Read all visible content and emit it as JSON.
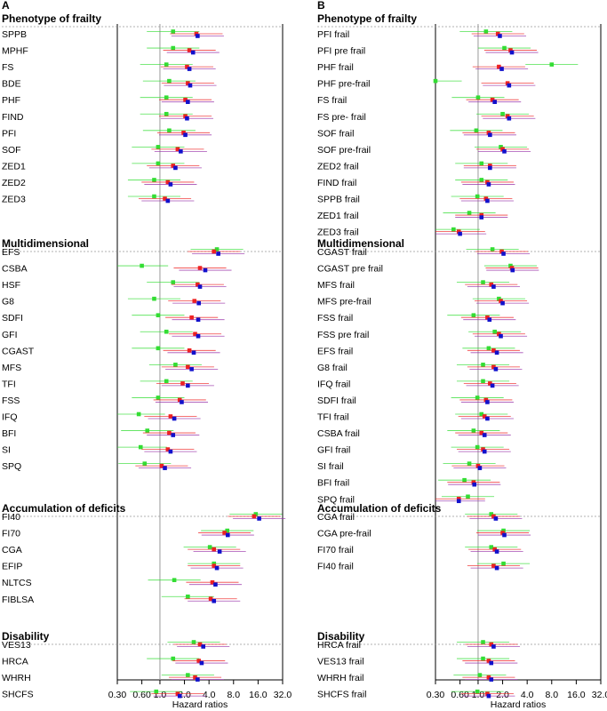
{
  "colors": {
    "green": "#33dd33",
    "red": "#ee2222",
    "blue": "#1111cc",
    "purple": "#9933aa",
    "ref": "#999999",
    "sep": "#999999"
  },
  "chart_data": [
    {
      "type": "forest",
      "panel": "A",
      "xlabel": "Hazard ratios",
      "xscale": "log",
      "xlim": [
        0.3,
        32
      ],
      "xticks": [
        0.3,
        0.6,
        1,
        2,
        4,
        8,
        16,
        32
      ],
      "xtick_labels": [
        "0.30",
        "0.60",
        "1.0",
        "2.0",
        "4.0",
        "8.0",
        "16.0",
        "32.0"
      ],
      "reference_line": 1,
      "series_order": [
        "green",
        "red",
        "blue"
      ],
      "sections": [
        {
          "title": "Phenotype of frailty",
          "rows": [
            {
              "label": "SPPB",
              "values": [
                1.45,
                2.8,
                2.9
              ]
            },
            {
              "label": "MPHF",
              "values": [
                1.45,
                2.3,
                2.55
              ]
            },
            {
              "label": "FS",
              "values": [
                1.2,
                2.15,
                2.3
              ]
            },
            {
              "label": "BDE",
              "values": [
                1.3,
                2.2,
                2.35
              ]
            },
            {
              "label": "PHF",
              "values": [
                1.2,
                2.05,
                2.2
              ]
            },
            {
              "label": "FIND",
              "values": [
                1.2,
                2.05,
                2.15
              ]
            },
            {
              "label": "PFI",
              "values": [
                1.3,
                1.95,
                2.05
              ]
            },
            {
              "label": "SOF",
              "values": [
                0.95,
                1.65,
                1.8
              ]
            },
            {
              "label": "ZED1",
              "values": [
                0.95,
                1.45,
                1.55
              ]
            },
            {
              "label": "ZED2",
              "values": [
                0.85,
                1.25,
                1.35
              ]
            },
            {
              "label": "ZED3",
              "values": [
                0.85,
                1.15,
                1.25
              ]
            }
          ]
        },
        {
          "title": "Multidimensional",
          "rows": [
            {
              "label": "EFS",
              "values": [
                5.0,
                4.6,
                5.2
              ]
            },
            {
              "label": "CSBA",
              "values": [
                0.6,
                3.1,
                3.6
              ]
            },
            {
              "label": "HSF",
              "values": [
                1.45,
                2.9,
                3.1
              ]
            },
            {
              "label": "G8",
              "values": [
                0.85,
                2.65,
                3.0
              ]
            },
            {
              "label": "SDFI",
              "values": [
                0.95,
                2.45,
                2.95
              ]
            },
            {
              "label": "GFI",
              "values": [
                1.2,
                2.7,
                2.95
              ]
            },
            {
              "label": "CGAST",
              "values": [
                0.95,
                2.3,
                2.6
              ]
            },
            {
              "label": "MFS",
              "values": [
                1.55,
                2.2,
                2.45
              ]
            },
            {
              "label": "TFI",
              "values": [
                1.2,
                1.9,
                2.2
              ]
            },
            {
              "label": "FSS",
              "values": [
                0.95,
                1.75,
                1.85
              ]
            },
            {
              "label": "IFQ",
              "values": [
                0.55,
                1.35,
                1.5
              ]
            },
            {
              "label": "BFI",
              "values": [
                0.7,
                1.3,
                1.45
              ]
            },
            {
              "label": "SI",
              "values": [
                0.58,
                1.25,
                1.35
              ]
            },
            {
              "label": "SPQ",
              "values": [
                0.65,
                1.05,
                1.15
              ]
            }
          ]
        },
        {
          "title": "Accumulation of deficits",
          "rows": [
            {
              "label": "FI40",
              "values": [
                15.0,
                14.3,
                16.5
              ]
            },
            {
              "label": "FI70",
              "values": [
                6.7,
                6.2,
                6.8
              ]
            },
            {
              "label": "CGA",
              "values": [
                4.1,
                4.6,
                5.4
              ]
            },
            {
              "label": "EFIP",
              "values": [
                4.6,
                4.6,
                5.0
              ]
            },
            {
              "label": "NLTCS",
              "values": [
                1.5,
                4.4,
                4.8
              ]
            },
            {
              "label": "FIBLSA",
              "values": [
                2.2,
                4.2,
                4.6
              ]
            }
          ]
        },
        {
          "title": "Disability",
          "rows": [
            {
              "label": "VES13",
              "values": [
                2.6,
                3.1,
                3.4
              ]
            },
            {
              "label": "HRCA",
              "values": [
                1.45,
                3.0,
                3.25
              ]
            },
            {
              "label": "WHRH",
              "values": [
                2.2,
                2.7,
                2.9
              ]
            },
            {
              "label": "SHCFS",
              "values": [
                0.9,
                1.65,
                1.75
              ]
            }
          ]
        }
      ]
    },
    {
      "type": "forest",
      "panel": "B",
      "xlabel": "Hazard ratios",
      "xscale": "log",
      "xlim": [
        0.3,
        32
      ],
      "xticks": [
        0.3,
        0.6,
        1,
        2,
        4,
        8,
        16,
        32
      ],
      "xtick_labels": [
        "0.30",
        "0.60",
        "1.0",
        "2.0",
        "4.0",
        "8.0",
        "16.0",
        "32.0"
      ],
      "reference_line": 1,
      "series_order": [
        "green",
        "red",
        "blue"
      ],
      "sections": [
        {
          "title": "Phenotype of frailty",
          "rows": [
            {
              "label": "PFI  frail",
              "values": [
                1.25,
                1.75,
                1.85
              ]
            },
            {
              "label": "PFI pre frail",
              "values": [
                2.1,
                2.5,
                2.6
              ]
            },
            {
              "label": "PHF frail",
              "values": [
                8.0,
                1.8,
                1.95
              ]
            },
            {
              "label": "PHF pre-frail",
              "values": [
                0.3,
                2.3,
                2.4
              ]
            },
            {
              "label": "FS frail",
              "values": [
                1.0,
                1.5,
                1.6
              ]
            },
            {
              "label": "FS pre- frail",
              "values": [
                2.0,
                2.3,
                2.4
              ]
            },
            {
              "label": "SOF frail",
              "values": [
                0.95,
                1.35,
                1.4
              ]
            },
            {
              "label": "SOF pre-frail",
              "values": [
                1.9,
                2.0,
                2.1
              ]
            },
            {
              "label": "ZED2 frail",
              "values": [
                1.1,
                1.4,
                1.4
              ]
            },
            {
              "label": "FIND frail",
              "values": [
                1.1,
                1.3,
                1.35
              ]
            },
            {
              "label": "SPPB frail",
              "values": [
                0.98,
                1.25,
                1.3
              ]
            },
            {
              "label": "ZED1 frail",
              "values": [
                0.78,
                1.1,
                1.1
              ]
            },
            {
              "label": "ZED3 frail",
              "values": [
                0.5,
                0.58,
                0.6
              ]
            }
          ]
        },
        {
          "title": "Multidimensional",
          "rows": [
            {
              "label": "CGAST frail",
              "values": [
                1.5,
                1.95,
                2.05
              ]
            },
            {
              "label": "CGAST pre frail",
              "values": [
                2.5,
                2.6,
                2.65
              ]
            },
            {
              "label": "MFS frail",
              "values": [
                1.15,
                1.45,
                1.55
              ]
            },
            {
              "label": "MFS pre-frail",
              "values": [
                1.8,
                1.9,
                2.0
              ]
            },
            {
              "label": "FSS frail",
              "values": [
                0.88,
                1.3,
                1.38
              ]
            },
            {
              "label": "FSS pre frail",
              "values": [
                1.6,
                1.8,
                1.9
              ]
            },
            {
              "label": "EFS frail",
              "values": [
                1.35,
                1.55,
                1.7
              ]
            },
            {
              "label": "G8 frail",
              "values": [
                1.15,
                1.55,
                1.65
              ]
            },
            {
              "label": "IFQ frail",
              "values": [
                1.15,
                1.4,
                1.5
              ]
            },
            {
              "label": "SDFI frail",
              "values": [
                0.98,
                1.25,
                1.3
              ]
            },
            {
              "label": "TFI frail",
              "values": [
                1.1,
                1.2,
                1.3
              ]
            },
            {
              "label": "CSBA frail",
              "values": [
                0.88,
                1.1,
                1.2
              ]
            },
            {
              "label": "GFI frail",
              "values": [
                0.98,
                1.15,
                1.2
              ]
            },
            {
              "label": "SI frail",
              "values": [
                0.78,
                1.0,
                1.05
              ]
            },
            {
              "label": "BFI frail",
              "values": [
                0.68,
                0.88,
                0.9
              ]
            },
            {
              "label": "SPQ frail",
              "values": [
                0.75,
                0.58,
                0.58
              ]
            }
          ]
        },
        {
          "title": "Accumulation of deficits",
          "rows": [
            {
              "label": "CGA frail",
              "values": [
                1.45,
                1.55,
                1.65
              ]
            },
            {
              "label": "CGA pre-frail",
              "values": [
                2.05,
                2.0,
                2.1
              ]
            },
            {
              "label": "FI70 frail",
              "values": [
                1.45,
                1.6,
                1.7
              ]
            },
            {
              "label": "FI40 frail",
              "values": [
                2.05,
                1.55,
                1.7
              ]
            }
          ]
        },
        {
          "title": "Disability",
          "rows": [
            {
              "label": "HRCA frail",
              "values": [
                1.15,
                1.45,
                1.55
              ]
            },
            {
              "label": "VES13 frail",
              "values": [
                1.15,
                1.35,
                1.45
              ]
            },
            {
              "label": "WHRH frail",
              "values": [
                1.05,
                1.35,
                1.45
              ]
            },
            {
              "label": "SHCFS frail",
              "values": [
                0.98,
                1.3,
                1.35
              ]
            }
          ]
        }
      ]
    }
  ]
}
